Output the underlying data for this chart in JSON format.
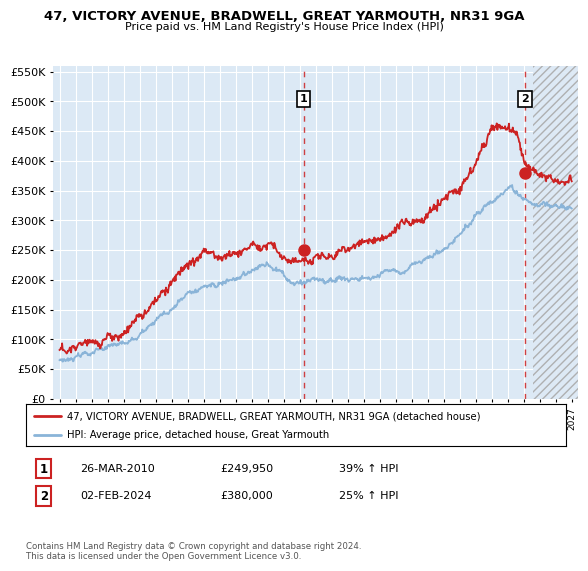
{
  "title": "47, VICTORY AVENUE, BRADWELL, GREAT YARMOUTH, NR31 9GA",
  "subtitle": "Price paid vs. HM Land Registry's House Price Index (HPI)",
  "legend_line1": "47, VICTORY AVENUE, BRADWELL, GREAT YARMOUTH, NR31 9GA (detached house)",
  "legend_line2": "HPI: Average price, detached house, Great Yarmouth",
  "annotation1_date": "26-MAR-2010",
  "annotation1_price": "£249,950",
  "annotation1_hpi": "39% ↑ HPI",
  "annotation2_date": "02-FEB-2024",
  "annotation2_price": "£380,000",
  "annotation2_hpi": "25% ↑ HPI",
  "footer": "Contains HM Land Registry data © Crown copyright and database right 2024.\nThis data is licensed under the Open Government Licence v3.0.",
  "hpi_color": "#8ab4d8",
  "price_color": "#cc2222",
  "marker1_x_year": 2010.25,
  "marker2_x_year": 2024.08,
  "marker1_y": 249950,
  "marker2_y": 380000,
  "ylim": [
    0,
    560000
  ],
  "xlim_left": 1994.6,
  "xlim_right": 2027.4,
  "chart_bg": "#dce9f5",
  "grid_color": "#ffffff",
  "hatch_start": 2024.55
}
